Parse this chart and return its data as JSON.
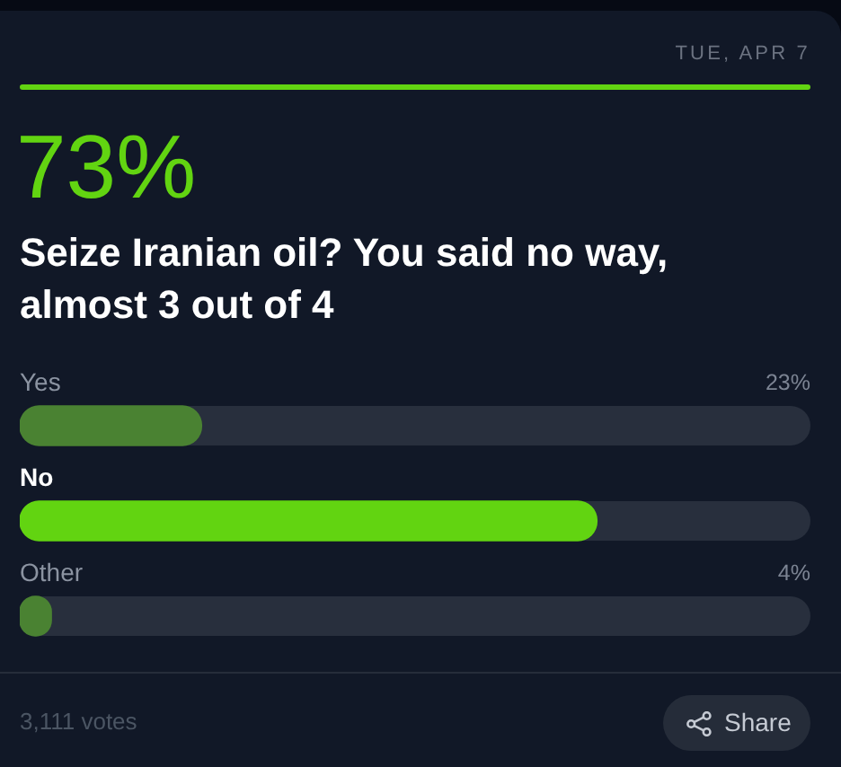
{
  "chart_data": {
    "type": "bar",
    "orientation": "horizontal",
    "title": "73%",
    "subtitle": "Seize Iranian oil? You said no way, almost 3 out of 4",
    "categories": [
      "Yes",
      "No",
      "Other"
    ],
    "values": [
      23,
      73,
      4
    ],
    "colors": [
      "#4a8232",
      "#62d411",
      "#4a8232"
    ],
    "value_labels": [
      "23%",
      null,
      "4%"
    ],
    "xlim": [
      0,
      100
    ],
    "tick_labels": "y",
    "annotations": [
      "TUE, APR 7",
      "3,111 votes",
      "Share"
    ]
  }
}
